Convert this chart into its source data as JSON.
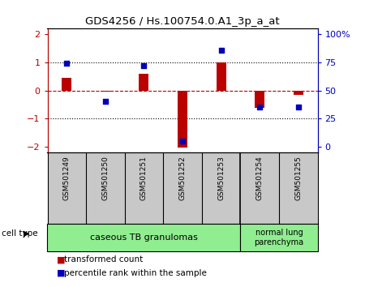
{
  "title": "GDS4256 / Hs.100754.0.A1_3p_a_at",
  "samples": [
    "GSM501249",
    "GSM501250",
    "GSM501251",
    "GSM501252",
    "GSM501253",
    "GSM501254",
    "GSM501255"
  ],
  "red_bars": [
    0.45,
    -0.04,
    0.58,
    -2.05,
    1.0,
    -0.62,
    -0.15
  ],
  "blue_squares": [
    0.98,
    -0.38,
    0.87,
    -1.82,
    1.44,
    -0.58,
    -0.58
  ],
  "ylim": [
    -2.2,
    2.2
  ],
  "left_ticks": [
    -2,
    -1,
    0,
    1,
    2
  ],
  "right_ticks": [
    0,
    25,
    50,
    75,
    100
  ],
  "right_tick_labels": [
    "0",
    "25",
    "50",
    "75",
    "100%"
  ],
  "red_color": "#BB0000",
  "blue_color": "#0000BB",
  "bar_width": 0.25,
  "square_size": 18,
  "sample_box_color": "#C8C8C8",
  "caseous_color": "#90EE90",
  "normal_color": "#90EE90",
  "legend_red": "transformed count",
  "legend_blue": "percentile rank within the sample",
  "cell_type_label": "cell type",
  "caseous_label": "caseous TB granulomas",
  "normal_label": "normal lung\nparenchyma"
}
